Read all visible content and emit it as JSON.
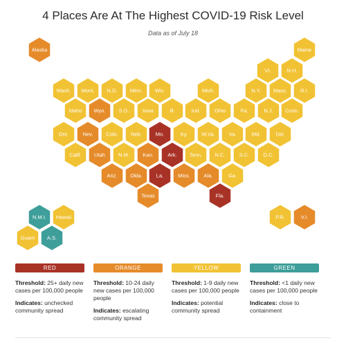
{
  "header": {
    "title": "4 Places Are At The Highest COVID-19 Risk Level",
    "subtitle": "Data as of July 18"
  },
  "colors": {
    "red": "#a93226",
    "orange": "#e58b2a",
    "yellow": "#f1c233",
    "green": "#3e9e99"
  },
  "map": {
    "tiles": [
      {
        "label": "Alaska",
        "level": "orange"
      },
      {
        "label": "Maine",
        "level": "yellow"
      },
      {
        "label": "Vt.",
        "level": "yellow"
      },
      {
        "label": "N.H.",
        "level": "yellow"
      },
      {
        "label": "Wash.",
        "level": "yellow"
      },
      {
        "label": "Mont.",
        "level": "yellow"
      },
      {
        "label": "N.D.",
        "level": "yellow"
      },
      {
        "label": "Minn.",
        "level": "yellow"
      },
      {
        "label": "Wis.",
        "level": "yellow"
      },
      {
        "label": "Mich.",
        "level": "yellow"
      },
      {
        "label": "N.Y.",
        "level": "yellow"
      },
      {
        "label": "Mass.",
        "level": "yellow"
      },
      {
        "label": "R.I.",
        "level": "yellow"
      },
      {
        "label": "Idaho",
        "level": "yellow"
      },
      {
        "label": "Wyo.",
        "level": "orange"
      },
      {
        "label": "S.D.",
        "level": "yellow"
      },
      {
        "label": "Iowa",
        "level": "yellow"
      },
      {
        "label": "Ill.",
        "level": "yellow"
      },
      {
        "label": "Ind.",
        "level": "yellow"
      },
      {
        "label": "Ohio",
        "level": "yellow"
      },
      {
        "label": "Pa.",
        "level": "yellow"
      },
      {
        "label": "N.J.",
        "level": "yellow"
      },
      {
        "label": "Conn.",
        "level": "yellow"
      },
      {
        "label": "Ore.",
        "level": "yellow"
      },
      {
        "label": "Nev.",
        "level": "orange"
      },
      {
        "label": "Colo.",
        "level": "yellow"
      },
      {
        "label": "Neb.",
        "level": "yellow"
      },
      {
        "label": "Mo.",
        "level": "red"
      },
      {
        "label": "Ky.",
        "level": "yellow"
      },
      {
        "label": "W.Va.",
        "level": "yellow"
      },
      {
        "label": "Va.",
        "level": "yellow"
      },
      {
        "label": "Md.",
        "level": "yellow"
      },
      {
        "label": "Del.",
        "level": "yellow"
      },
      {
        "label": "Calif.",
        "level": "yellow"
      },
      {
        "label": "Utah",
        "level": "orange"
      },
      {
        "label": "N.M.",
        "level": "yellow"
      },
      {
        "label": "Kan.",
        "level": "orange"
      },
      {
        "label": "Ark.",
        "level": "red"
      },
      {
        "label": "Tenn.",
        "level": "yellow"
      },
      {
        "label": "N.C.",
        "level": "yellow"
      },
      {
        "label": "S.C.",
        "level": "yellow"
      },
      {
        "label": "D.C.",
        "level": "yellow"
      },
      {
        "label": "Ariz.",
        "level": "orange"
      },
      {
        "label": "Okla.",
        "level": "orange"
      },
      {
        "label": "La.",
        "level": "red"
      },
      {
        "label": "Miss.",
        "level": "orange"
      },
      {
        "label": "Ala.",
        "level": "orange"
      },
      {
        "label": "Ga.",
        "level": "yellow"
      },
      {
        "label": "Texas",
        "level": "orange"
      },
      {
        "label": "Fla.",
        "level": "red"
      },
      {
        "label": "N.M.I.",
        "level": "green"
      },
      {
        "label": "Hawaii",
        "level": "yellow"
      },
      {
        "label": "Guam",
        "level": "yellow"
      },
      {
        "label": "A.S.",
        "level": "green"
      },
      {
        "label": "P.R.",
        "level": "yellow"
      },
      {
        "label": "V.I.",
        "level": "orange"
      }
    ]
  },
  "legend": [
    {
      "name": "RED",
      "level": "red",
      "threshold_label": "Threshold:",
      "threshold": "25+ daily new cases per 100,000 people",
      "indicates_label": "Indicates:",
      "indicates": "unchecked community spread"
    },
    {
      "name": "ORANGE",
      "level": "orange",
      "threshold_label": "Threshold:",
      "threshold": "10-24 daily new cases per 100,000 people",
      "indicates_label": "Indicates:",
      "indicates": "escalating community spread"
    },
    {
      "name": "YELLOW",
      "level": "yellow",
      "threshold_label": "Threshold:",
      "threshold": "1-9 daily new cases per 100,000 people",
      "indicates_label": "Indicates:",
      "indicates": "potential community spread"
    },
    {
      "name": "GREEN",
      "level": "green",
      "threshold_label": "Threshold:",
      "threshold": "<1 daily new cases per 100,000 people",
      "indicates_label": "Indicates:",
      "indicates": "close to containment"
    }
  ]
}
